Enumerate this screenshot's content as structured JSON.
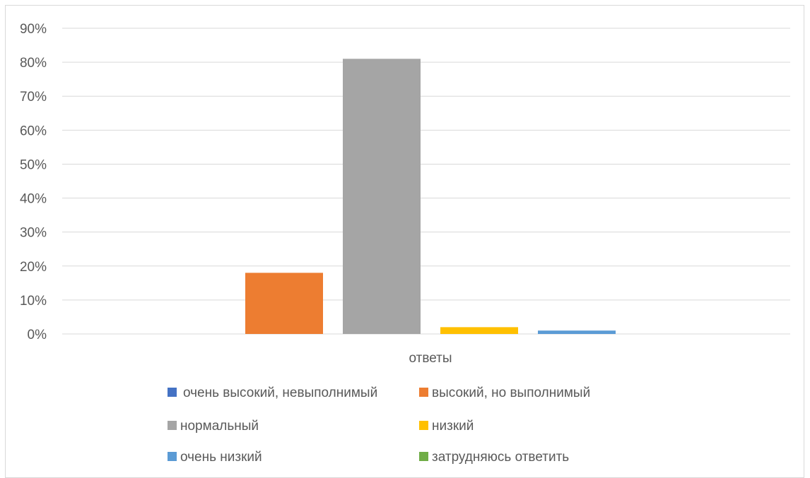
{
  "chart_data": {
    "type": "bar",
    "categories": [
      "ответы"
    ],
    "series": [
      {
        "name": "очень высокий, невыполнимый",
        "values": [
          0
        ],
        "color": "#4472c4"
      },
      {
        "name": "высокий, но выполнимый",
        "values": [
          18
        ],
        "color": "#ed7d31"
      },
      {
        "name": "нормальный",
        "values": [
          81
        ],
        "color": "#a5a5a5"
      },
      {
        "name": "низкий",
        "values": [
          2
        ],
        "color": "#ffc000"
      },
      {
        "name": "очень низкий",
        "values": [
          1
        ],
        "color": "#5b9bd5"
      },
      {
        "name": "затрудняюсь ответить",
        "values": [
          0
        ],
        "color": "#70ad47"
      }
    ],
    "ylim": [
      0,
      90
    ],
    "yticks": [
      "0%",
      "10%",
      "20%",
      "30%",
      "40%",
      "50%",
      "60%",
      "70%",
      "80%",
      "90%"
    ],
    "grid": true,
    "legend_position": "bottom"
  }
}
